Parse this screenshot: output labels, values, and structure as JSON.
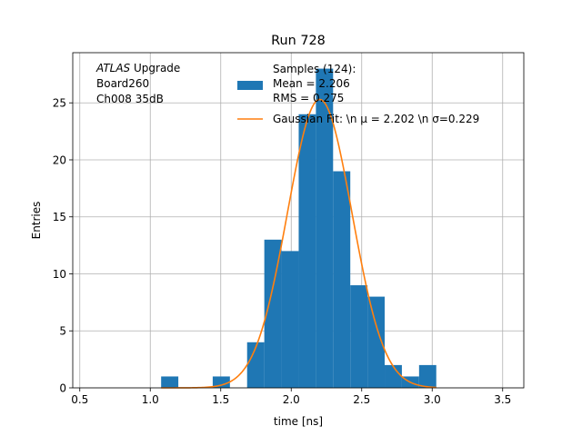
{
  "chart_data": {
    "type": "bar",
    "title": "Run 728",
    "xlabel": "time [ns]",
    "ylabel": "Entries",
    "xlim": [
      0.45,
      3.65
    ],
    "ylim": [
      0,
      29.4
    ],
    "grid": true,
    "xticks": [
      "0.5",
      "1.0",
      "1.5",
      "2.0",
      "2.5",
      "3.0",
      "3.5"
    ],
    "xtick_values": [
      0.5,
      1.0,
      1.5,
      2.0,
      2.5,
      3.0,
      3.5
    ],
    "yticks": [
      "0",
      "5",
      "10",
      "15",
      "20",
      "25"
    ],
    "ytick_values": [
      0,
      5,
      10,
      15,
      20,
      25
    ],
    "histogram": {
      "bin_edges": [
        1.077,
        1.199,
        1.321,
        1.443,
        1.565,
        1.687,
        1.809,
        1.931,
        2.053,
        2.175,
        2.297,
        2.419,
        2.541,
        2.663,
        2.785,
        2.907,
        3.029
      ],
      "counts": [
        1,
        0,
        0,
        1,
        0,
        4,
        13,
        12,
        24,
        28,
        19,
        9,
        8,
        2,
        1,
        2
      ],
      "color": "#1f77b4"
    },
    "fit": {
      "amplitude": 25.3,
      "mu": 2.202,
      "sigma": 0.229,
      "x_range": [
        1.077,
        3.029
      ],
      "color": "#ff7f0e"
    },
    "legend": {
      "placement": "top-right",
      "entries": [
        {
          "label_lines": [
            "Samples (124):",
            " Mean = 2.206",
            " RMS = 0.275"
          ],
          "color": "#1f77b4",
          "marker": "patch"
        },
        {
          "label_lines": [
            "Gaussian Fit: \\n μ = 2.202 \\n σ=0.229"
          ],
          "color": "#ff7f0e",
          "marker": "line"
        }
      ]
    },
    "annotation": {
      "lines": [
        "ATLAS Upgrade",
        " Board260",
        " Ch008 35dB"
      ],
      "italic_word": "ATLAS"
    }
  }
}
